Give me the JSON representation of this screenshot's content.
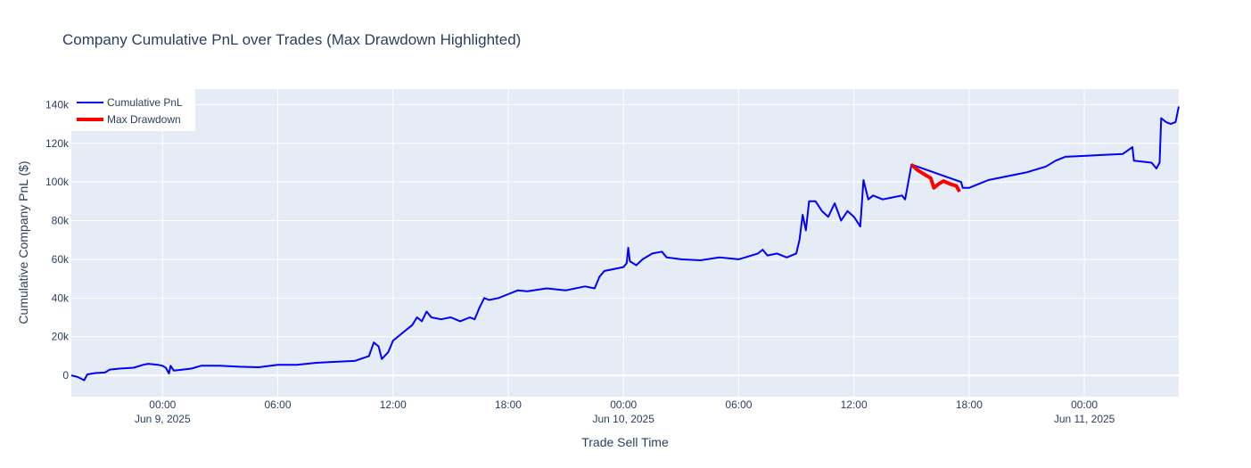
{
  "chart_data": {
    "type": "line",
    "title": "Company Cumulative PnL over Trades (Max Drawdown Highlighted)",
    "xlabel": "Trade Sell Time",
    "ylabel": "Cumulative Company PnL ($)",
    "x_range": [
      "2025-06-08 19:15",
      "2025-06-11 04:55"
    ],
    "ylim": [
      -11000,
      148000
    ],
    "x_ticks": [
      {
        "label": "00:00",
        "date": "Jun 9, 2025",
        "t": "2025-06-09 00:00"
      },
      {
        "label": "06:00",
        "date": "",
        "t": "2025-06-09 06:00"
      },
      {
        "label": "12:00",
        "date": "",
        "t": "2025-06-09 12:00"
      },
      {
        "label": "18:00",
        "date": "",
        "t": "2025-06-09 18:00"
      },
      {
        "label": "00:00",
        "date": "Jun 10, 2025",
        "t": "2025-06-10 00:00"
      },
      {
        "label": "06:00",
        "date": "",
        "t": "2025-06-10 06:00"
      },
      {
        "label": "12:00",
        "date": "",
        "t": "2025-06-10 12:00"
      },
      {
        "label": "18:00",
        "date": "",
        "t": "2025-06-10 18:00"
      },
      {
        "label": "00:00",
        "date": "Jun 11, 2025",
        "t": "2025-06-11 00:00"
      }
    ],
    "y_ticks": [
      {
        "label": "0",
        "v": 0
      },
      {
        "label": "20k",
        "v": 20000
      },
      {
        "label": "40k",
        "v": 40000
      },
      {
        "label": "60k",
        "v": 60000
      },
      {
        "label": "80k",
        "v": 80000
      },
      {
        "label": "100k",
        "v": 100000
      },
      {
        "label": "120k",
        "v": 120000
      },
      {
        "label": "140k",
        "v": 140000
      }
    ],
    "grid": true,
    "legend_position": "top-left",
    "series": [
      {
        "name": "Cumulative PnL",
        "color": "#0000ff",
        "points": [
          [
            "2025-06-08 19:15",
            0
          ],
          [
            "2025-06-08 19:35",
            -800
          ],
          [
            "2025-06-08 19:55",
            -2500
          ],
          [
            "2025-06-08 20:05",
            500
          ],
          [
            "2025-06-08 20:30",
            1200
          ],
          [
            "2025-06-08 21:00",
            1500
          ],
          [
            "2025-06-08 21:15",
            3000
          ],
          [
            "2025-06-08 21:45",
            3500
          ],
          [
            "2025-06-08 22:30",
            4000
          ],
          [
            "2025-06-08 23:00",
            5500
          ],
          [
            "2025-06-08 23:15",
            6000
          ],
          [
            "2025-06-08 23:45",
            5500
          ],
          [
            "2025-06-09 00:00",
            5000
          ],
          [
            "2025-06-09 00:10",
            4000
          ],
          [
            "2025-06-09 00:20",
            1000
          ],
          [
            "2025-06-09 00:25",
            5000
          ],
          [
            "2025-06-09 00:35",
            2500
          ],
          [
            "2025-06-09 01:30",
            3500
          ],
          [
            "2025-06-09 02:00",
            5000
          ],
          [
            "2025-06-09 03:00",
            5000
          ],
          [
            "2025-06-09 04:00",
            4500
          ],
          [
            "2025-06-09 05:00",
            4200
          ],
          [
            "2025-06-09 06:00",
            5500
          ],
          [
            "2025-06-09 07:00",
            5500
          ],
          [
            "2025-06-09 08:00",
            6500
          ],
          [
            "2025-06-09 09:00",
            7000
          ],
          [
            "2025-06-09 10:00",
            7500
          ],
          [
            "2025-06-09 10:45",
            10000
          ],
          [
            "2025-06-09 11:00",
            17000
          ],
          [
            "2025-06-09 11:15",
            15000
          ],
          [
            "2025-06-09 11:25",
            8500
          ],
          [
            "2025-06-09 11:45",
            12000
          ],
          [
            "2025-06-09 12:00",
            18000
          ],
          [
            "2025-06-09 12:30",
            22000
          ],
          [
            "2025-06-09 13:00",
            26000
          ],
          [
            "2025-06-09 13:15",
            30000
          ],
          [
            "2025-06-09 13:30",
            28000
          ],
          [
            "2025-06-09 13:45",
            33000
          ],
          [
            "2025-06-09 14:00",
            30000
          ],
          [
            "2025-06-09 14:30",
            29000
          ],
          [
            "2025-06-09 15:00",
            30000
          ],
          [
            "2025-06-09 15:30",
            28000
          ],
          [
            "2025-06-09 16:00",
            30000
          ],
          [
            "2025-06-09 16:15",
            29000
          ],
          [
            "2025-06-09 16:30",
            35000
          ],
          [
            "2025-06-09 16:45",
            40000
          ],
          [
            "2025-06-09 17:00",
            39000
          ],
          [
            "2025-06-09 17:30",
            40000
          ],
          [
            "2025-06-09 18:00",
            42000
          ],
          [
            "2025-06-09 18:30",
            44000
          ],
          [
            "2025-06-09 19:00",
            43500
          ],
          [
            "2025-06-09 20:00",
            45000
          ],
          [
            "2025-06-09 21:00",
            44000
          ],
          [
            "2025-06-09 22:00",
            46000
          ],
          [
            "2025-06-09 22:30",
            45000
          ],
          [
            "2025-06-09 22:45",
            51000
          ],
          [
            "2025-06-09 23:00",
            54000
          ],
          [
            "2025-06-10 00:00",
            56000
          ],
          [
            "2025-06-10 00:10",
            58000
          ],
          [
            "2025-06-10 00:15",
            66000
          ],
          [
            "2025-06-10 00:20",
            59000
          ],
          [
            "2025-06-10 00:40",
            57000
          ],
          [
            "2025-06-10 01:00",
            60000
          ],
          [
            "2025-06-10 01:30",
            63000
          ],
          [
            "2025-06-10 02:00",
            64000
          ],
          [
            "2025-06-10 02:15",
            61000
          ],
          [
            "2025-06-10 03:00",
            60000
          ],
          [
            "2025-06-10 04:00",
            59500
          ],
          [
            "2025-06-10 05:00",
            61000
          ],
          [
            "2025-06-10 06:00",
            60000
          ],
          [
            "2025-06-10 07:00",
            63000
          ],
          [
            "2025-06-10 07:15",
            65000
          ],
          [
            "2025-06-10 07:30",
            62000
          ],
          [
            "2025-06-10 08:00",
            63000
          ],
          [
            "2025-06-10 08:30",
            61000
          ],
          [
            "2025-06-10 09:00",
            63000
          ],
          [
            "2025-06-10 09:10",
            70000
          ],
          [
            "2025-06-10 09:20",
            83000
          ],
          [
            "2025-06-10 09:30",
            75000
          ],
          [
            "2025-06-10 09:40",
            90000
          ],
          [
            "2025-06-10 10:00",
            90000
          ],
          [
            "2025-06-10 10:20",
            85000
          ],
          [
            "2025-06-10 10:40",
            82000
          ],
          [
            "2025-06-10 11:00",
            89000
          ],
          [
            "2025-06-10 11:20",
            80000
          ],
          [
            "2025-06-10 11:40",
            85000
          ],
          [
            "2025-06-10 12:00",
            82000
          ],
          [
            "2025-06-10 12:20",
            77000
          ],
          [
            "2025-06-10 12:30",
            101000
          ],
          [
            "2025-06-10 12:45",
            91000
          ],
          [
            "2025-06-10 13:00",
            93000
          ],
          [
            "2025-06-10 13:30",
            91000
          ],
          [
            "2025-06-10 14:00",
            92000
          ],
          [
            "2025-06-10 14:30",
            93000
          ],
          [
            "2025-06-10 14:40",
            91000
          ],
          [
            "2025-06-10 15:00",
            109000
          ],
          [
            "2025-06-10 17:35",
            100000
          ],
          [
            "2025-06-10 17:40",
            97000
          ],
          [
            "2025-06-10 18:00",
            97000
          ],
          [
            "2025-06-10 18:30",
            99000
          ],
          [
            "2025-06-10 19:00",
            101000
          ],
          [
            "2025-06-10 20:00",
            103000
          ],
          [
            "2025-06-10 21:00",
            105000
          ],
          [
            "2025-06-10 22:00",
            108000
          ],
          [
            "2025-06-10 22:30",
            111000
          ],
          [
            "2025-06-10 23:00",
            113000
          ],
          [
            "2025-06-11 00:00",
            113500
          ],
          [
            "2025-06-11 01:00",
            114000
          ],
          [
            "2025-06-11 02:00",
            114500
          ],
          [
            "2025-06-11 02:30",
            118000
          ],
          [
            "2025-06-11 02:35",
            111000
          ],
          [
            "2025-06-11 03:30",
            110000
          ],
          [
            "2025-06-11 03:45",
            107000
          ],
          [
            "2025-06-11 03:55",
            110000
          ],
          [
            "2025-06-11 04:00",
            133000
          ],
          [
            "2025-06-11 04:15",
            131000
          ],
          [
            "2025-06-11 04:30",
            130000
          ],
          [
            "2025-06-11 04:45",
            131000
          ],
          [
            "2025-06-11 04:50",
            135000
          ],
          [
            "2025-06-11 04:55",
            139000
          ]
        ]
      },
      {
        "name": "Max Drawdown",
        "color": "#ff0000",
        "points": [
          [
            "2025-06-10 15:00",
            109000
          ],
          [
            "2025-06-10 15:20",
            106000
          ],
          [
            "2025-06-10 15:40",
            104000
          ],
          [
            "2025-06-10 16:00",
            102000
          ],
          [
            "2025-06-10 16:10",
            97000
          ],
          [
            "2025-06-10 16:25",
            99000
          ],
          [
            "2025-06-10 16:40",
            100500
          ],
          [
            "2025-06-10 17:00",
            99000
          ],
          [
            "2025-06-10 17:20",
            98000
          ],
          [
            "2025-06-10 17:30",
            95000
          ]
        ]
      }
    ]
  },
  "colors": {
    "plot_bg": "#e5ecf6",
    "grid": "#ffffff",
    "text": "#2a3f5f"
  }
}
